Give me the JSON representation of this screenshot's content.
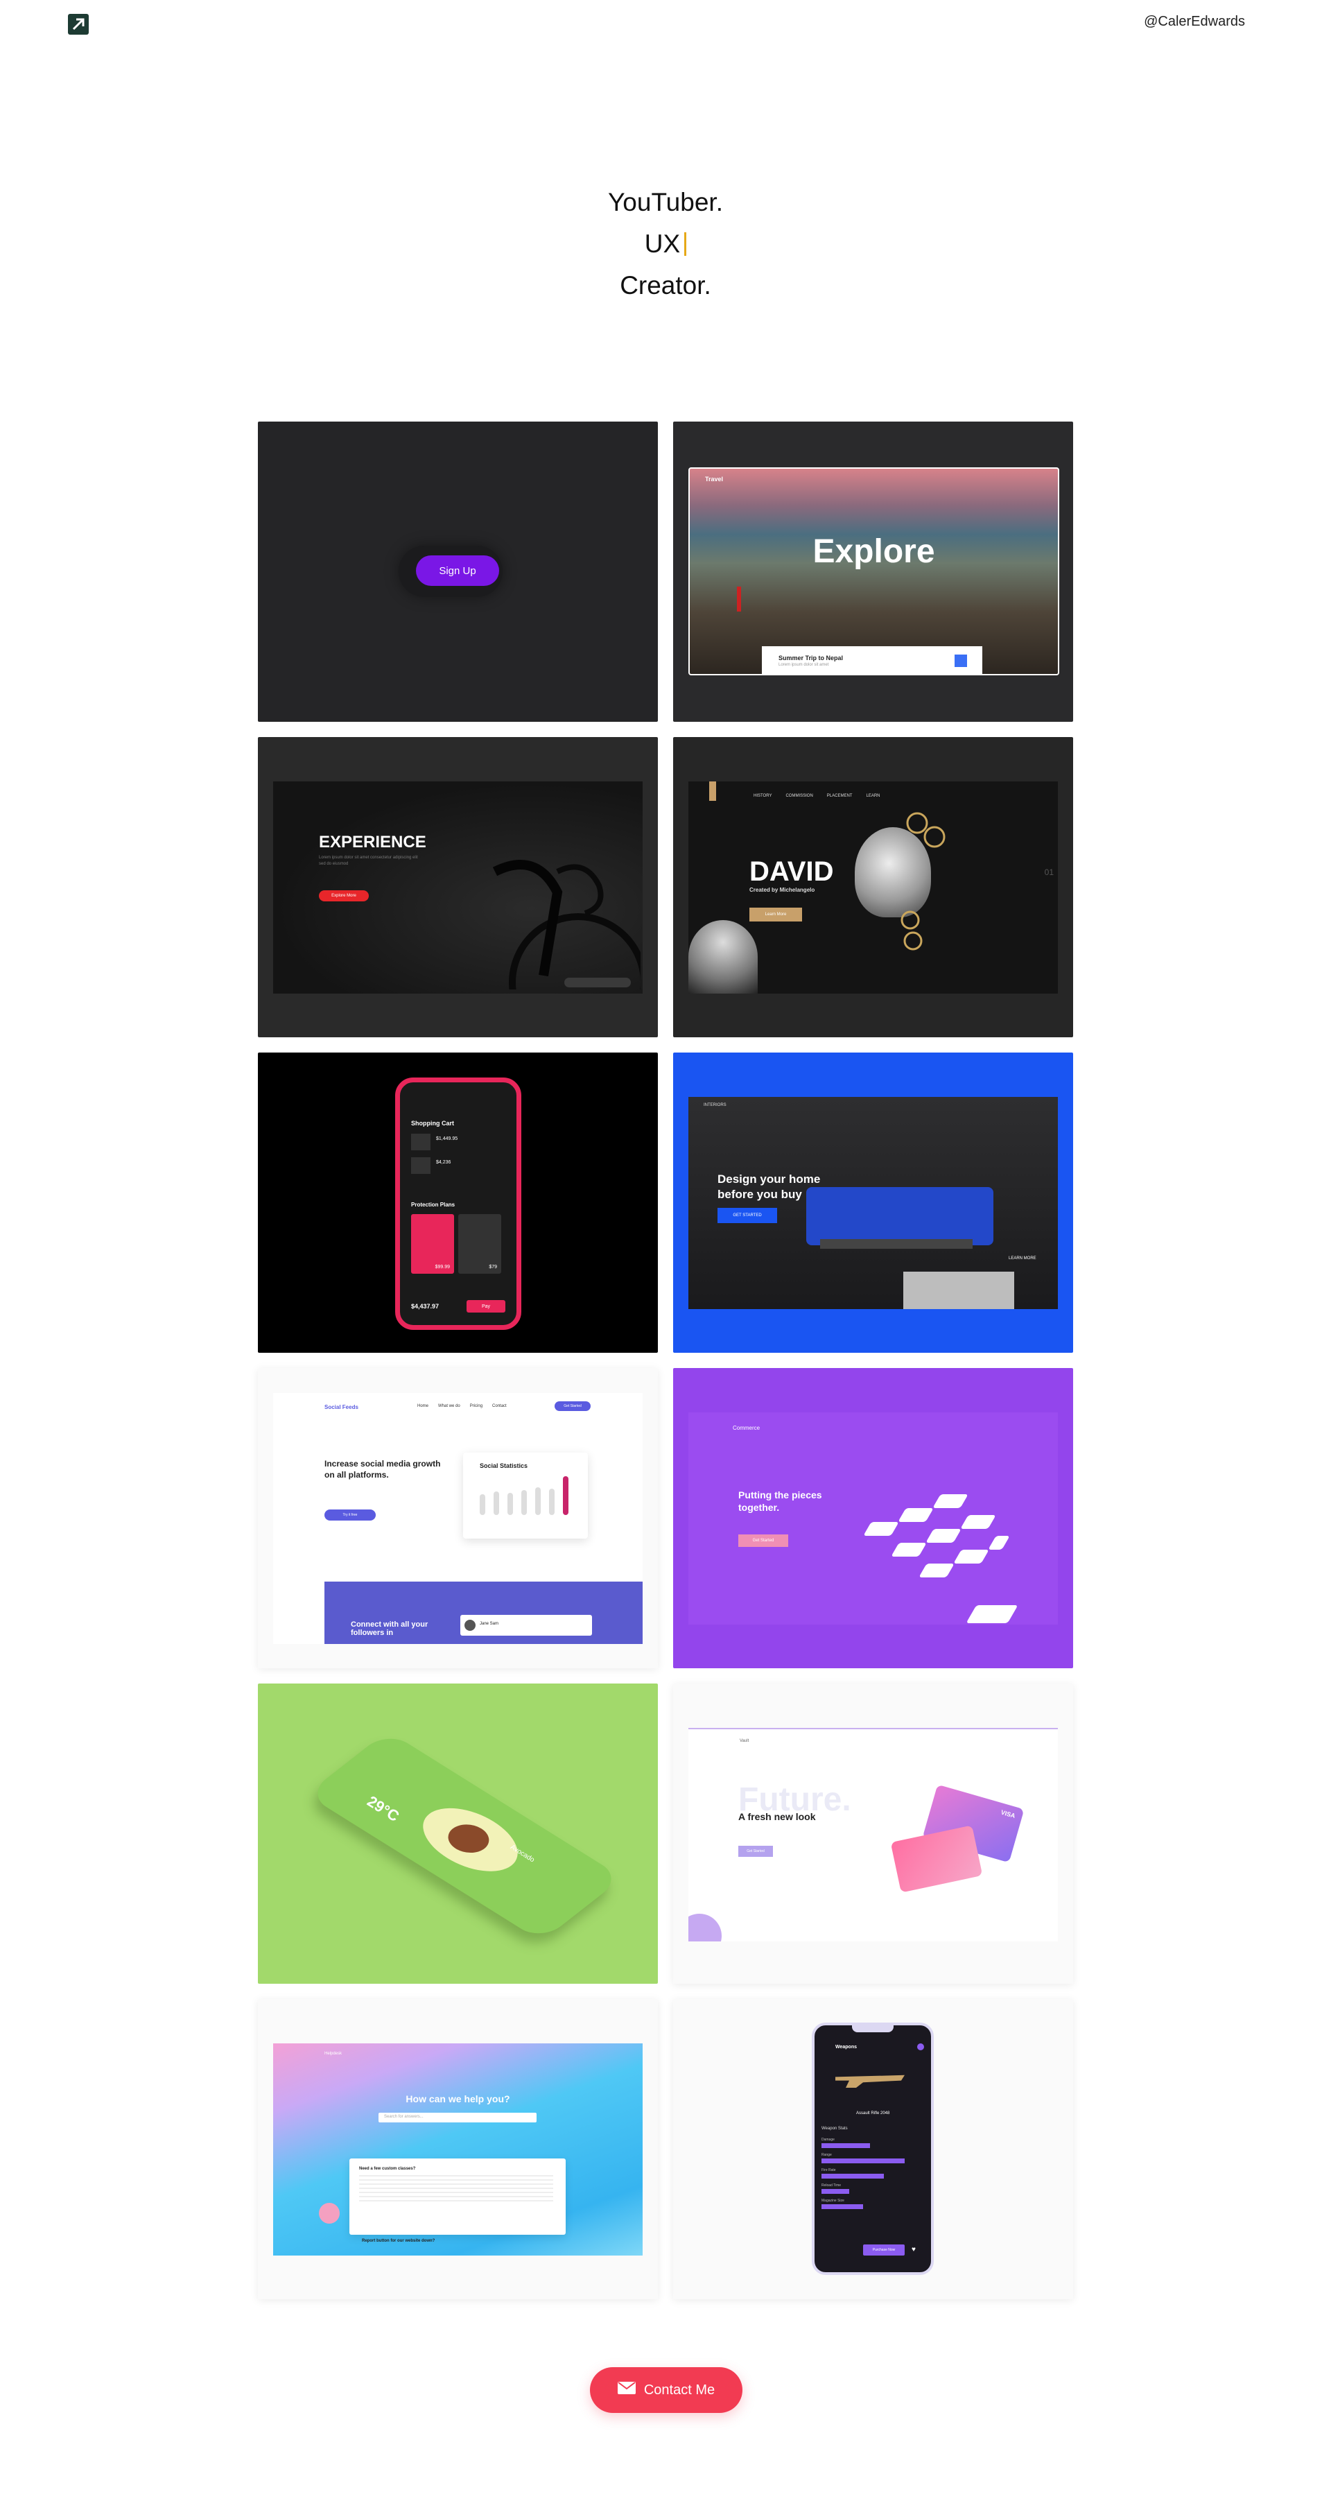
{
  "header": {
    "handle": "@CalerEdwards"
  },
  "hero": {
    "line1": "YouTuber.",
    "line2": "UX",
    "line3": "Creator."
  },
  "cards": {
    "signup": {
      "button": "Sign Up"
    },
    "explore": {
      "brand": "Travel",
      "title": "Explore",
      "trip": "Summer Trip to Nepal",
      "trip_sub": "Lorem ipsum dolor sit amet"
    },
    "experience": {
      "title": "EXPERIENCE",
      "sub": "Lorem ipsum dolor sit amet consectetur adipiscing elit sed do eiusmod",
      "cta": "Explore More"
    },
    "david": {
      "nav": [
        "HISTORY",
        "COMMISSION",
        "PLACEMENT",
        "LEARN"
      ],
      "title": "DAVID",
      "sub": "Created by Michelangelo",
      "cta": "Learn More",
      "num": "01"
    },
    "cart": {
      "title": "Shopping Cart",
      "item1": "$1,449.95",
      "item2": "$4,236",
      "plans": "Protection Plans",
      "plan_price1": "$99.99",
      "plan_price2": "$79",
      "total": "$4,437.97",
      "pay": "Pay"
    },
    "home": {
      "brand": "INTERIORS",
      "title": "Design your home before you buy",
      "cta": "GET STARTED",
      "learn": "LEARN MORE"
    },
    "social": {
      "brand": "Social Feeds",
      "nav": [
        "Home",
        "What we do",
        "Pricing",
        "Contact"
      ],
      "cta": "Get Started",
      "title": "Increase social media growth on all platforms.",
      "stats": "Social Statistics",
      "try": "Try it free",
      "connect": "Connect with all your followers in",
      "user": "Jane Sam"
    },
    "commerce": {
      "brand": "Commerce",
      "title": "Putting the pieces together.",
      "cta": "Get Started"
    },
    "avocado": {
      "temp": "29°C",
      "name": "Avocado"
    },
    "future": {
      "brand": "Vault",
      "big": "Future.",
      "title": "A fresh new look",
      "cta": "Get Started",
      "card_brand": "VISA"
    },
    "help": {
      "brand": "Helpdesk",
      "title": "How can we help you?",
      "search": "Search for answers...",
      "q1": "Need a few custom classes?",
      "q2": "Report button for our website down?"
    },
    "weapons": {
      "title": "Weapons",
      "name": "Assault Rifle 2048",
      "stats": "Weapon Stats",
      "rows": [
        "Damage",
        "Range",
        "Fire Rate",
        "Reload Time",
        "Magazine Size"
      ],
      "cta": "Purchase Now"
    }
  },
  "contact": {
    "label": "Contact Me"
  },
  "colors": {
    "accent": "#f23b52",
    "signup_purple": "#7a17e6",
    "blue": "#1a55f2",
    "green": "#a2d96b",
    "commerce": "#9b4cf0"
  }
}
